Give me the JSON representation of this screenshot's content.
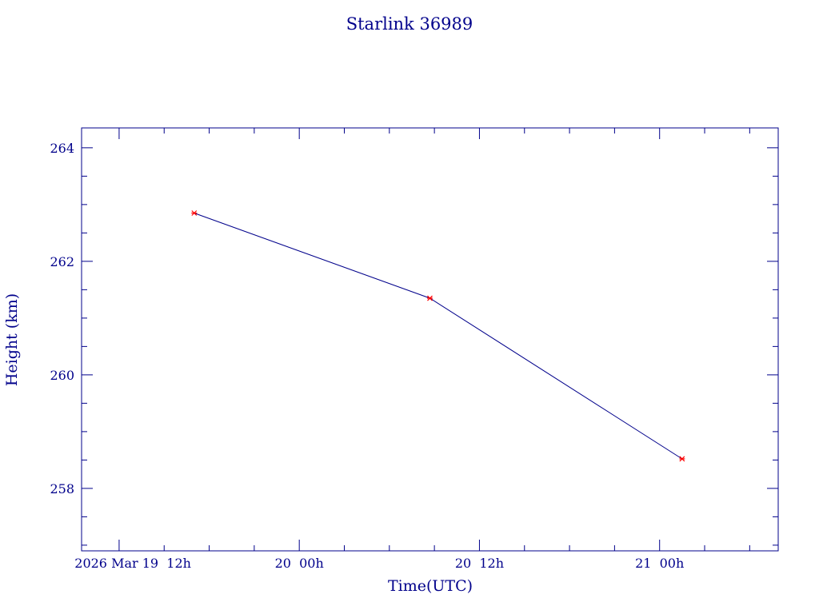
{
  "colors": {
    "axis": "#00008b",
    "text": "#00008b",
    "line": "#00008b",
    "marker": "#ff0000",
    "background": "#ffffff"
  },
  "chart_data": {
    "type": "line",
    "title": "Starlink 36989",
    "xlabel": "Time(UTC)",
    "ylabel": "Height (km)",
    "x_tick_labels": [
      "2026 Mar 19  12h",
      "20  00h",
      "20  12h",
      "21  00h"
    ],
    "x_ticks_hours": [
      12,
      24,
      36,
      48
    ],
    "xlim_hours": [
      9.5,
      55.9
    ],
    "ylim": [
      256.9,
      264.35
    ],
    "y_major_ticks": [
      258,
      260,
      262,
      264
    ],
    "y_minor_step": 0.5,
    "x_minor_step_hours": 3,
    "grid": false,
    "series": [
      {
        "x_hours": [
          17.0,
          32.7,
          49.5
        ],
        "y": [
          262.85,
          261.35,
          258.52
        ]
      }
    ]
  }
}
